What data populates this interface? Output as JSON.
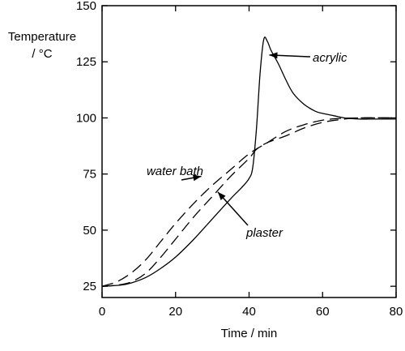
{
  "chart_data": {
    "type": "line",
    "title": "",
    "xlabel": "Time / min",
    "ylabel": [
      "Temperature",
      "/ °C"
    ],
    "xlim": [
      0,
      80
    ],
    "ylim": [
      20,
      150
    ],
    "x_ticks": [
      0,
      20,
      40,
      60,
      80
    ],
    "y_ticks": [
      25,
      50,
      75,
      100,
      125,
      150
    ],
    "grid": false,
    "legend": "none",
    "series": [
      {
        "name": "acrylic",
        "style": "solid",
        "x": [
          0,
          5,
          8,
          12,
          16,
          20,
          25,
          30,
          35,
          38,
          40,
          41,
          42,
          43,
          44,
          45,
          46,
          48,
          50,
          52,
          55,
          58,
          60,
          63,
          66,
          70,
          75,
          80
        ],
        "y": [
          25,
          25.5,
          26.5,
          29,
          33,
          38,
          46,
          55,
          64,
          69,
          73,
          78,
          95,
          120,
          135,
          134,
          130,
          124,
          117,
          111,
          106,
          103,
          102,
          101,
          100,
          99.5,
          99.5,
          99.5
        ]
      },
      {
        "name": "water bath",
        "style": "dashed",
        "x": [
          0,
          4,
          8,
          12,
          16,
          20,
          25,
          30,
          35,
          40,
          45,
          50,
          55,
          60,
          65,
          70,
          80
        ],
        "y": [
          25,
          27,
          31,
          37,
          45,
          53,
          62,
          70,
          77,
          84,
          89,
          94,
          97,
          99,
          99.8,
          100,
          100
        ]
      },
      {
        "name": "plaster",
        "style": "dashed",
        "x": [
          0,
          4,
          8,
          12,
          16,
          20,
          25,
          30,
          35,
          40,
          42,
          45,
          50,
          55,
          60,
          65,
          70,
          80
        ],
        "y": [
          25,
          25.5,
          27,
          31,
          38,
          46,
          56,
          65,
          74,
          82,
          86,
          89,
          92,
          95.5,
          98,
          99.3,
          100,
          100
        ]
      }
    ],
    "annotations": [
      {
        "text": "acrylic",
        "target": [
          45.5,
          128
        ]
      },
      {
        "text": "water bath",
        "target": [
          27,
          74
        ]
      },
      {
        "text": "plaster",
        "target": [
          31.5,
          67
        ]
      }
    ]
  }
}
